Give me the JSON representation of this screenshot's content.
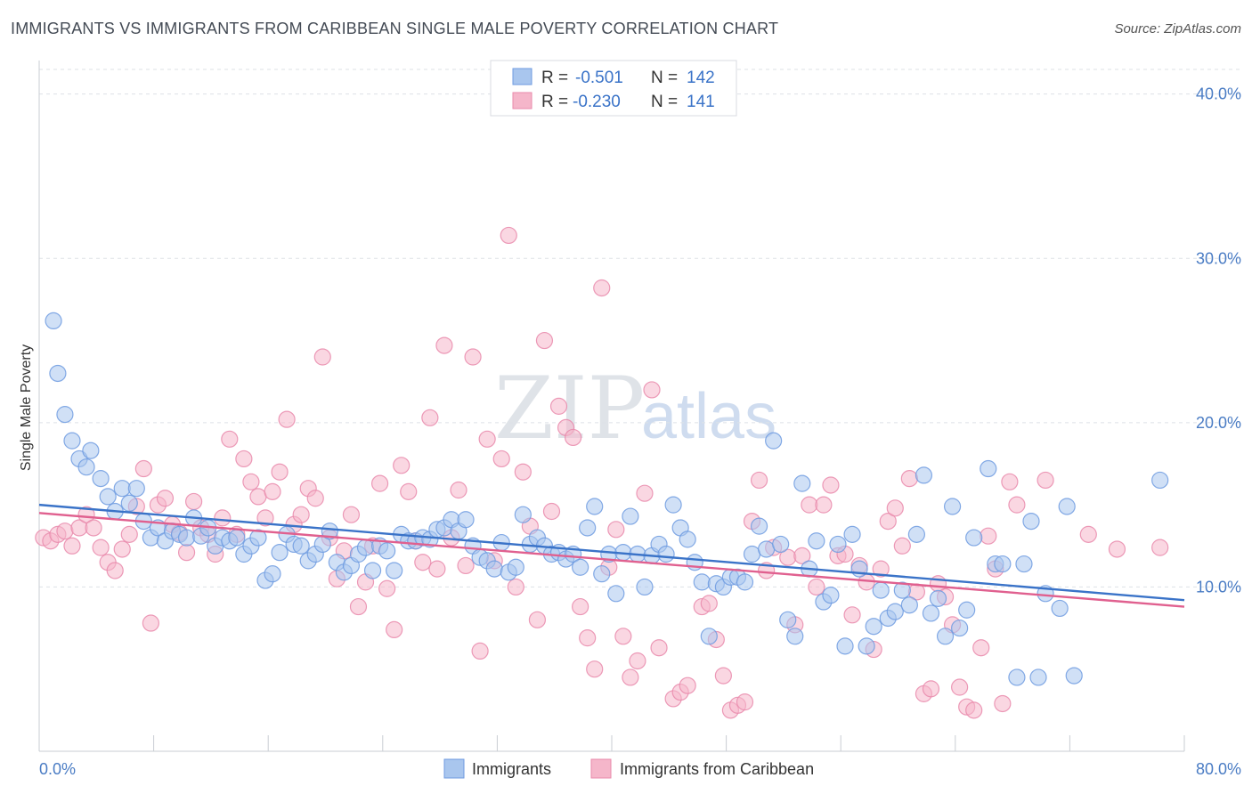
{
  "title": "IMMIGRANTS VS IMMIGRANTS FROM CARIBBEAN SINGLE MALE POVERTY CORRELATION CHART",
  "source": "Source: ZipAtlas.com",
  "watermark": {
    "zip": "ZIP",
    "atlas": "atlas"
  },
  "colors": {
    "blue": "#3a73c8",
    "blue_fill": "#a9c6ee",
    "pink": "#e0608f",
    "pink_fill": "#f5b6ca",
    "grid": "#dde1e6",
    "axis_text": "#4a7cc4"
  },
  "legend": {
    "r_label": "R =",
    "n_label": "N =",
    "series": [
      {
        "r": "-0.501",
        "n": "142"
      },
      {
        "r": "-0.230",
        "n": "141"
      }
    ]
  },
  "chart_data": {
    "type": "scatter",
    "title": "IMMIGRANTS VS IMMIGRANTS FROM CARIBBEAN SINGLE MALE POVERTY CORRELATION CHART",
    "xlabel": "",
    "ylabel": "Single Male Poverty",
    "xlim": [
      0,
      80
    ],
    "ylim": [
      0,
      41.5
    ],
    "x_tick_labels": [
      "0.0%",
      "80.0%"
    ],
    "y_ticks": [
      10,
      20,
      30,
      40
    ],
    "y_tick_labels": [
      "10.0%",
      "20.0%",
      "30.0%",
      "40.0%"
    ],
    "grid": true,
    "legend_position": "top-center",
    "series": [
      {
        "name": "Immigrants",
        "trend": {
          "x": [
            0,
            80
          ],
          "y": [
            15.0,
            9.2
          ]
        },
        "points": [
          [
            1.0,
            26.2
          ],
          [
            1.3,
            23.0
          ],
          [
            1.8,
            20.5
          ],
          [
            2.3,
            18.9
          ],
          [
            2.8,
            17.8
          ],
          [
            3.3,
            17.3
          ],
          [
            3.6,
            18.3
          ],
          [
            4.3,
            16.6
          ],
          [
            4.8,
            15.5
          ],
          [
            5.3,
            14.6
          ],
          [
            5.8,
            16.0
          ],
          [
            6.3,
            15.1
          ],
          [
            6.8,
            16.0
          ],
          [
            7.3,
            14.0
          ],
          [
            7.8,
            13.0
          ],
          [
            8.3,
            13.6
          ],
          [
            8.8,
            12.8
          ],
          [
            9.3,
            13.4
          ],
          [
            9.8,
            13.2
          ],
          [
            10.3,
            13.0
          ],
          [
            10.8,
            14.2
          ],
          [
            11.3,
            13.1
          ],
          [
            11.8,
            13.6
          ],
          [
            12.3,
            12.5
          ],
          [
            12.8,
            13.0
          ],
          [
            13.3,
            12.8
          ],
          [
            13.8,
            13.0
          ],
          [
            14.3,
            12.0
          ],
          [
            14.8,
            12.5
          ],
          [
            15.3,
            13.0
          ],
          [
            15.8,
            10.4
          ],
          [
            16.3,
            10.8
          ],
          [
            16.8,
            12.1
          ],
          [
            17.3,
            13.2
          ],
          [
            17.8,
            12.6
          ],
          [
            18.3,
            12.5
          ],
          [
            18.8,
            11.6
          ],
          [
            19.3,
            12.0
          ],
          [
            19.8,
            12.6
          ],
          [
            20.3,
            13.4
          ],
          [
            20.8,
            11.5
          ],
          [
            21.3,
            10.9
          ],
          [
            21.8,
            11.3
          ],
          [
            22.3,
            12.0
          ],
          [
            22.8,
            12.4
          ],
          [
            23.3,
            11.0
          ],
          [
            23.8,
            12.5
          ],
          [
            24.3,
            12.2
          ],
          [
            24.8,
            11.0
          ],
          [
            25.3,
            13.2
          ],
          [
            25.8,
            12.8
          ],
          [
            26.3,
            12.8
          ],
          [
            26.8,
            13.0
          ],
          [
            27.3,
            12.9
          ],
          [
            27.8,
            13.5
          ],
          [
            28.3,
            13.6
          ],
          [
            28.8,
            14.1
          ],
          [
            29.3,
            13.4
          ],
          [
            29.8,
            14.1
          ],
          [
            30.3,
            12.5
          ],
          [
            30.8,
            11.8
          ],
          [
            31.3,
            11.6
          ],
          [
            31.8,
            11.1
          ],
          [
            32.3,
            12.7
          ],
          [
            32.8,
            10.9
          ],
          [
            33.3,
            11.2
          ],
          [
            33.8,
            14.4
          ],
          [
            34.3,
            12.6
          ],
          [
            34.8,
            13.0
          ],
          [
            35.3,
            12.5
          ],
          [
            35.8,
            12.0
          ],
          [
            36.3,
            12.1
          ],
          [
            36.8,
            11.7
          ],
          [
            37.3,
            12.0
          ],
          [
            37.8,
            11.2
          ],
          [
            38.3,
            13.6
          ],
          [
            38.8,
            14.9
          ],
          [
            39.3,
            10.8
          ],
          [
            39.8,
            12.0
          ],
          [
            40.3,
            9.6
          ],
          [
            40.8,
            12.1
          ],
          [
            41.3,
            14.3
          ],
          [
            41.8,
            12.0
          ],
          [
            42.3,
            10.0
          ],
          [
            42.8,
            11.9
          ],
          [
            43.3,
            12.6
          ],
          [
            43.8,
            12.0
          ],
          [
            44.3,
            15.0
          ],
          [
            44.8,
            13.6
          ],
          [
            45.3,
            12.9
          ],
          [
            45.8,
            11.5
          ],
          [
            46.3,
            10.3
          ],
          [
            46.8,
            7.0
          ],
          [
            47.3,
            10.2
          ],
          [
            47.8,
            10.0
          ],
          [
            48.3,
            10.6
          ],
          [
            48.8,
            10.6
          ],
          [
            49.3,
            10.3
          ],
          [
            49.8,
            12.0
          ],
          [
            50.3,
            13.7
          ],
          [
            50.8,
            12.3
          ],
          [
            51.3,
            18.9
          ],
          [
            51.8,
            12.6
          ],
          [
            52.3,
            8.0
          ],
          [
            52.8,
            7.0
          ],
          [
            53.3,
            16.3
          ],
          [
            53.8,
            11.1
          ],
          [
            54.3,
            12.8
          ],
          [
            54.8,
            9.1
          ],
          [
            55.3,
            9.5
          ],
          [
            55.8,
            12.6
          ],
          [
            56.3,
            6.4
          ],
          [
            56.8,
            13.2
          ],
          [
            57.3,
            11.1
          ],
          [
            57.8,
            6.4
          ],
          [
            58.3,
            7.6
          ],
          [
            58.8,
            9.8
          ],
          [
            59.3,
            8.1
          ],
          [
            59.8,
            8.5
          ],
          [
            60.3,
            9.8
          ],
          [
            60.8,
            8.9
          ],
          [
            61.3,
            13.2
          ],
          [
            61.8,
            16.8
          ],
          [
            62.3,
            8.4
          ],
          [
            62.8,
            9.3
          ],
          [
            63.3,
            7.0
          ],
          [
            63.8,
            14.9
          ],
          [
            64.3,
            7.5
          ],
          [
            64.8,
            8.6
          ],
          [
            65.3,
            13.0
          ],
          [
            66.3,
            17.2
          ],
          [
            66.8,
            11.4
          ],
          [
            67.3,
            11.4
          ],
          [
            68.3,
            4.5
          ],
          [
            68.8,
            11.4
          ],
          [
            69.3,
            14.0
          ],
          [
            69.8,
            4.5
          ],
          [
            70.3,
            9.6
          ],
          [
            71.3,
            8.7
          ],
          [
            71.8,
            14.9
          ],
          [
            72.3,
            4.6
          ],
          [
            78.3,
            16.5
          ]
        ]
      },
      {
        "name": "Immigrants from Caribbean",
        "trend": {
          "x": [
            0,
            80
          ],
          "y": [
            14.5,
            8.8
          ]
        },
        "points": [
          [
            0.3,
            13.0
          ],
          [
            0.8,
            12.8
          ],
          [
            1.3,
            13.2
          ],
          [
            1.8,
            13.4
          ],
          [
            2.3,
            12.5
          ],
          [
            2.8,
            13.6
          ],
          [
            3.3,
            14.4
          ],
          [
            3.8,
            13.6
          ],
          [
            4.3,
            12.4
          ],
          [
            4.8,
            11.5
          ],
          [
            5.3,
            11.0
          ],
          [
            5.8,
            12.3
          ],
          [
            6.3,
            13.2
          ],
          [
            6.8,
            14.9
          ],
          [
            7.3,
            17.2
          ],
          [
            7.8,
            7.8
          ],
          [
            8.3,
            15.0
          ],
          [
            8.8,
            15.4
          ],
          [
            9.3,
            13.8
          ],
          [
            9.8,
            13.3
          ],
          [
            10.3,
            12.1
          ],
          [
            10.8,
            15.2
          ],
          [
            11.3,
            13.6
          ],
          [
            11.8,
            13.2
          ],
          [
            12.3,
            12.0
          ],
          [
            12.8,
            14.2
          ],
          [
            13.3,
            19.0
          ],
          [
            13.8,
            13.2
          ],
          [
            14.3,
            17.8
          ],
          [
            14.8,
            16.4
          ],
          [
            15.3,
            15.5
          ],
          [
            15.8,
            14.2
          ],
          [
            16.3,
            15.8
          ],
          [
            16.8,
            17.0
          ],
          [
            17.3,
            20.2
          ],
          [
            17.8,
            13.8
          ],
          [
            18.3,
            14.4
          ],
          [
            18.8,
            16.0
          ],
          [
            19.3,
            15.4
          ],
          [
            19.8,
            24.0
          ],
          [
            20.3,
            13.0
          ],
          [
            20.8,
            10.5
          ],
          [
            21.3,
            12.2
          ],
          [
            21.8,
            14.4
          ],
          [
            22.3,
            8.8
          ],
          [
            22.8,
            10.3
          ],
          [
            23.3,
            12.5
          ],
          [
            23.8,
            16.3
          ],
          [
            24.3,
            9.9
          ],
          [
            24.8,
            7.4
          ],
          [
            25.3,
            17.4
          ],
          [
            25.8,
            15.8
          ],
          [
            26.3,
            12.8
          ],
          [
            26.8,
            11.5
          ],
          [
            27.3,
            20.3
          ],
          [
            27.8,
            11.1
          ],
          [
            28.3,
            24.7
          ],
          [
            28.8,
            13.0
          ],
          [
            29.3,
            15.9
          ],
          [
            29.8,
            11.3
          ],
          [
            30.3,
            24.0
          ],
          [
            30.8,
            6.1
          ],
          [
            31.3,
            19.0
          ],
          [
            31.8,
            11.6
          ],
          [
            32.3,
            17.8
          ],
          [
            32.8,
            31.4
          ],
          [
            33.3,
            10.0
          ],
          [
            33.8,
            17.0
          ],
          [
            34.3,
            13.7
          ],
          [
            34.8,
            8.0
          ],
          [
            35.3,
            25.0
          ],
          [
            35.8,
            14.6
          ],
          [
            36.3,
            21.0
          ],
          [
            36.8,
            19.7
          ],
          [
            37.3,
            19.1
          ],
          [
            37.8,
            8.8
          ],
          [
            38.3,
            6.9
          ],
          [
            38.8,
            5.0
          ],
          [
            39.3,
            28.2
          ],
          [
            39.8,
            11.2
          ],
          [
            40.3,
            13.5
          ],
          [
            40.8,
            7.0
          ],
          [
            41.3,
            4.5
          ],
          [
            41.8,
            5.5
          ],
          [
            42.3,
            15.7
          ],
          [
            42.8,
            22.0
          ],
          [
            43.3,
            6.3
          ],
          [
            44.3,
            3.2
          ],
          [
            44.8,
            3.6
          ],
          [
            45.3,
            4.0
          ],
          [
            46.3,
            8.8
          ],
          [
            46.8,
            9.0
          ],
          [
            47.3,
            6.8
          ],
          [
            47.8,
            4.6
          ],
          [
            48.3,
            2.5
          ],
          [
            48.8,
            2.8
          ],
          [
            49.3,
            3.0
          ],
          [
            49.8,
            14.0
          ],
          [
            50.3,
            16.5
          ],
          [
            50.8,
            11.0
          ],
          [
            51.3,
            12.4
          ],
          [
            52.3,
            11.8
          ],
          [
            52.8,
            7.7
          ],
          [
            53.3,
            11.9
          ],
          [
            53.8,
            15.0
          ],
          [
            54.3,
            10.0
          ],
          [
            54.8,
            15.0
          ],
          [
            55.3,
            16.2
          ],
          [
            55.8,
            11.9
          ],
          [
            56.3,
            12.0
          ],
          [
            56.8,
            8.3
          ],
          [
            57.3,
            11.3
          ],
          [
            57.8,
            10.3
          ],
          [
            58.3,
            6.2
          ],
          [
            58.8,
            11.1
          ],
          [
            59.3,
            14.0
          ],
          [
            59.8,
            14.8
          ],
          [
            60.3,
            12.5
          ],
          [
            60.8,
            16.6
          ],
          [
            61.3,
            9.7
          ],
          [
            61.8,
            3.5
          ],
          [
            62.3,
            3.8
          ],
          [
            62.8,
            10.2
          ],
          [
            63.3,
            9.4
          ],
          [
            63.8,
            7.7
          ],
          [
            64.3,
            3.9
          ],
          [
            64.8,
            2.7
          ],
          [
            65.3,
            2.5
          ],
          [
            65.8,
            6.3
          ],
          [
            66.3,
            13.1
          ],
          [
            66.8,
            11.1
          ],
          [
            67.3,
            2.9
          ],
          [
            67.8,
            16.4
          ],
          [
            68.3,
            15.0
          ],
          [
            70.3,
            16.5
          ],
          [
            73.3,
            13.2
          ],
          [
            75.3,
            12.3
          ],
          [
            78.3,
            12.4
          ]
        ]
      }
    ]
  }
}
